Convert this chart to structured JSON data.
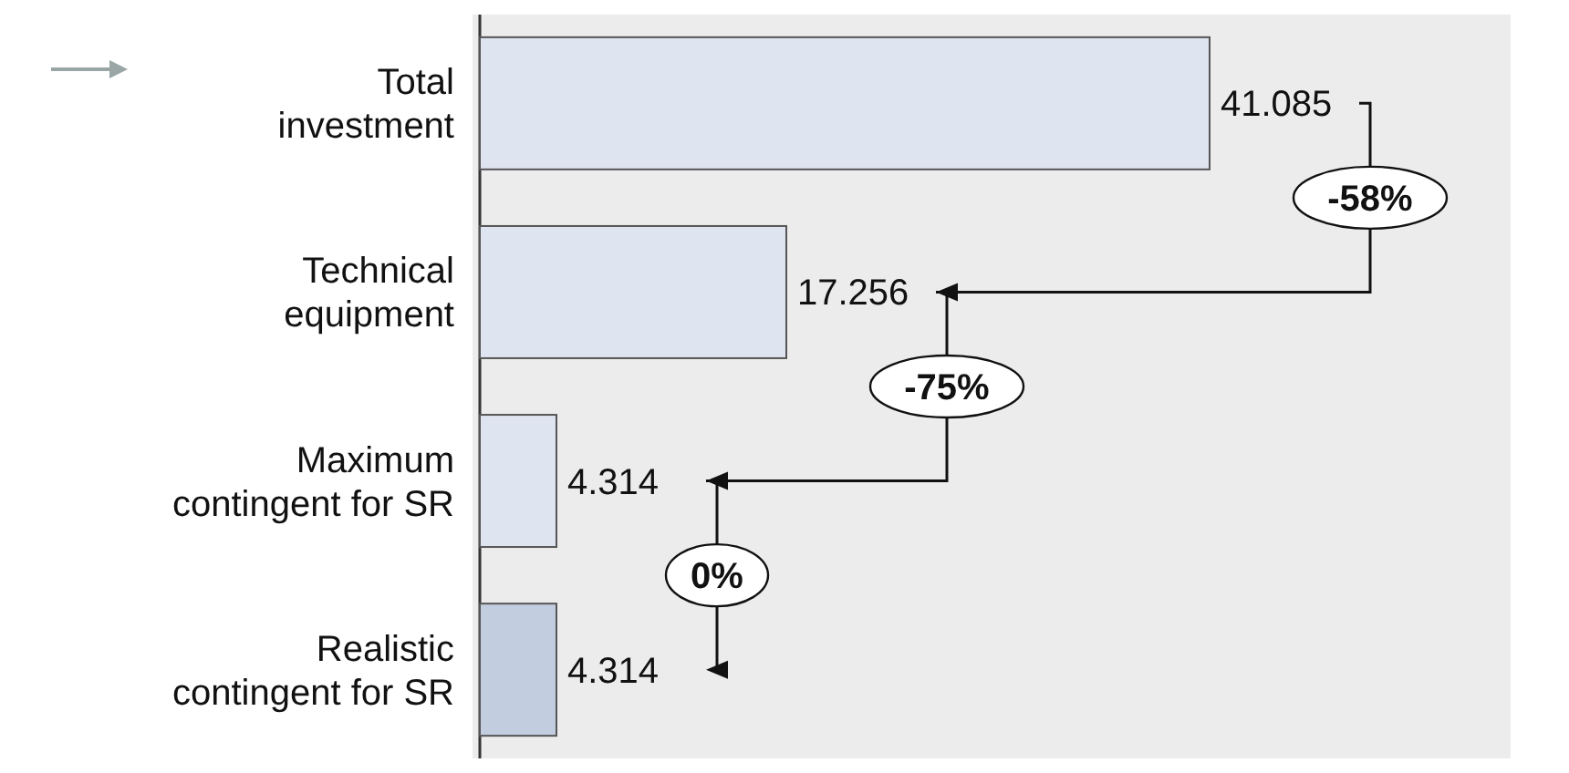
{
  "chart_data": {
    "type": "bar",
    "orientation": "horizontal",
    "categories": [
      "Total investment",
      "Technical equipment",
      "Maximum contingent for SR",
      "Realistic contingent for SR"
    ],
    "values": [
      41.085,
      17.256,
      4.314,
      4.314
    ],
    "colors": [
      "#dfe5f0",
      "#dfe5f0",
      "#dfe5f0",
      "#c3cde0"
    ],
    "data_labels": true,
    "annotations": [
      "-58%",
      "-75%",
      "0%"
    ]
  }
}
